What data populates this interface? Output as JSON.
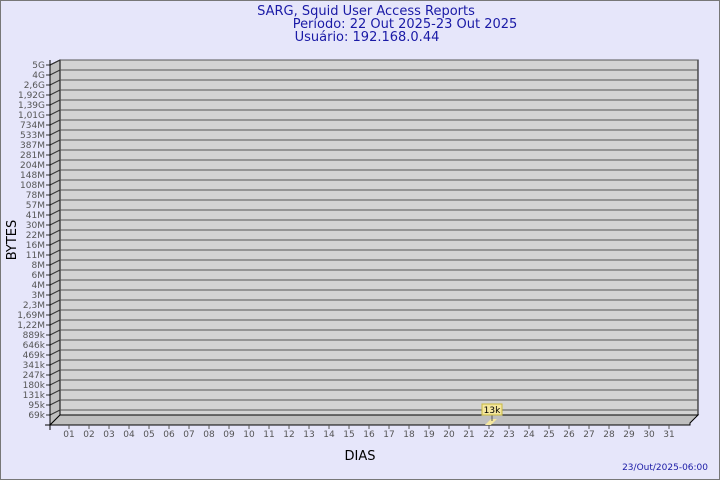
{
  "chart_data": {
    "type": "bar",
    "title": "SARG, Squid User Access Reports",
    "subtitle": [
      "Período: 22 Out 2025-23 Out 2025",
      "Usuário: 192.168.0.44"
    ],
    "xlabel": "DIAS",
    "ylabel": "BYTES",
    "y_scale": "log",
    "y_ticks": [
      "5G",
      "4G",
      "2,6G",
      "1,92G",
      "1,39G",
      "1,01G",
      "734M",
      "533M",
      "387M",
      "281M",
      "204M",
      "148M",
      "108M",
      "78M",
      "57M",
      "41M",
      "30M",
      "22M",
      "16M",
      "11M",
      "8M",
      "6M",
      "4M",
      "3M",
      "2,3M",
      "1,69M",
      "1,22M",
      "889k",
      "646k",
      "469k",
      "341k",
      "247k",
      "180k",
      "131k",
      "95k",
      "69k"
    ],
    "categories": [
      "01",
      "02",
      "03",
      "04",
      "05",
      "06",
      "07",
      "08",
      "09",
      "10",
      "11",
      "12",
      "13",
      "14",
      "15",
      "16",
      "17",
      "18",
      "19",
      "20",
      "21",
      "22",
      "23",
      "24",
      "25",
      "26",
      "27",
      "28",
      "29",
      "30",
      "31"
    ],
    "values": [
      {
        "day": "22",
        "value": 13000,
        "label": "13k"
      }
    ],
    "grid": true,
    "bar_color": "#f5e79e",
    "footer": "23/Out/2025-06:00"
  }
}
